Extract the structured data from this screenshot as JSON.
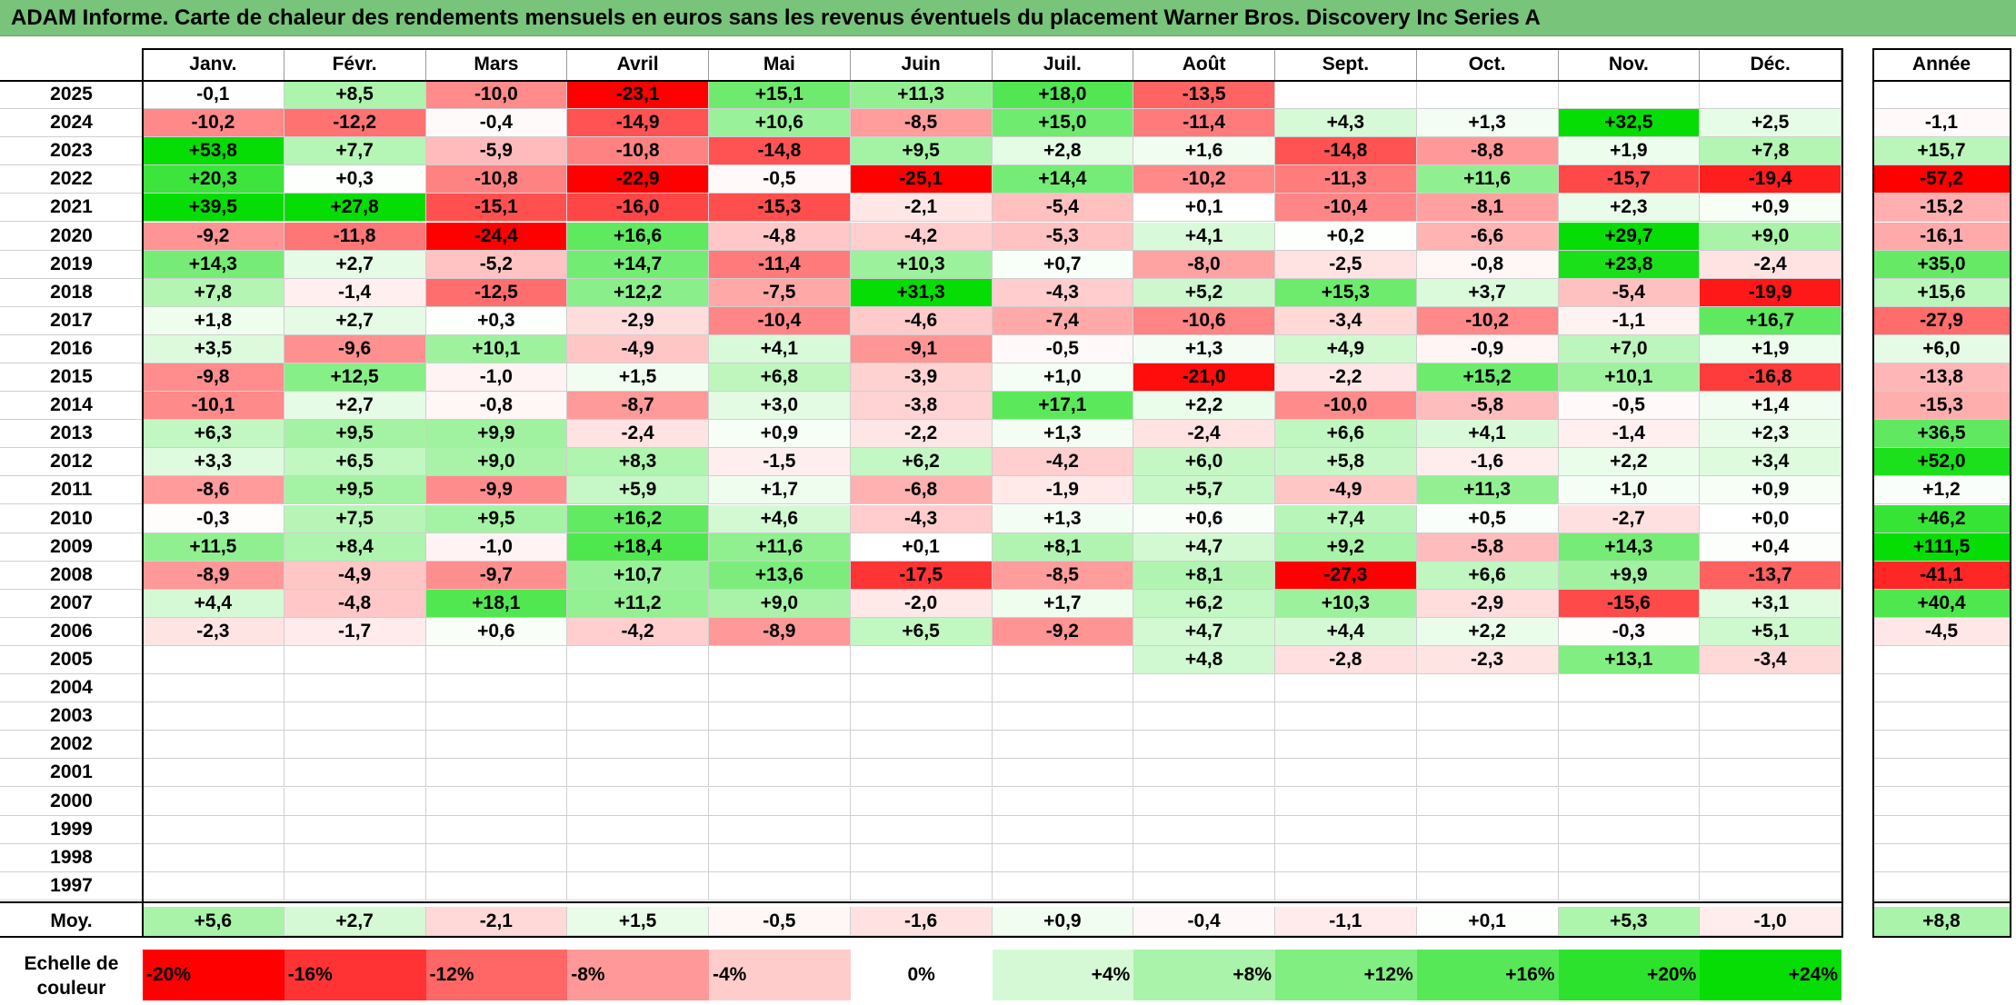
{
  "title": "ADAM Informe. Carte de chaleur des rendements mensuels en euros sans les revenus éventuels du placement Warner Bros. Discovery Inc Series A",
  "chart_data": {
    "type": "heatmap",
    "title": "ADAM Informe. Carte de chaleur des rendements mensuels en euros sans les revenus éventuels du placement Warner Bros. Discovery Inc Series A",
    "columns": [
      "Janv.",
      "Févr.",
      "Mars",
      "Avril",
      "Mai",
      "Juin",
      "Juil.",
      "Août",
      "Sept.",
      "Oct.",
      "Nov.",
      "Déc."
    ],
    "year_header": "Année",
    "rows": [
      {
        "year": "2025",
        "months": [
          "-0,1",
          "+8,5",
          "-10,0",
          "-23,1",
          "+15,1",
          "+11,3",
          "+18,0",
          "-13,5",
          "",
          "",
          "",
          ""
        ],
        "annual": ""
      },
      {
        "year": "2024",
        "months": [
          "-10,2",
          "-12,2",
          "-0,4",
          "-14,9",
          "+10,6",
          "-8,5",
          "+15,0",
          "-11,4",
          "+4,3",
          "+1,3",
          "+32,5",
          "+2,5"
        ],
        "annual": "-1,1"
      },
      {
        "year": "2023",
        "months": [
          "+53,8",
          "+7,7",
          "-5,9",
          "-10,8",
          "-14,8",
          "+9,5",
          "+2,8",
          "+1,6",
          "-14,8",
          "-8,8",
          "+1,9",
          "+7,8"
        ],
        "annual": "+15,7"
      },
      {
        "year": "2022",
        "months": [
          "+20,3",
          "+0,3",
          "-10,8",
          "-22,9",
          "-0,5",
          "-25,1",
          "+14,4",
          "-10,2",
          "-11,3",
          "+11,6",
          "-15,7",
          "-19,4"
        ],
        "annual": "-57,2"
      },
      {
        "year": "2021",
        "months": [
          "+39,5",
          "+27,8",
          "-15,1",
          "-16,0",
          "-15,3",
          "-2,1",
          "-5,4",
          "+0,1",
          "-10,4",
          "-8,1",
          "+2,3",
          "+0,9"
        ],
        "annual": "-15,2"
      },
      {
        "year": "2020",
        "months": [
          "-9,2",
          "-11,8",
          "-24,4",
          "+16,6",
          "-4,8",
          "-4,2",
          "-5,3",
          "+4,1",
          "+0,2",
          "-6,6",
          "+29,7",
          "+9,0"
        ],
        "annual": "-16,1"
      },
      {
        "year": "2019",
        "months": [
          "+14,3",
          "+2,7",
          "-5,2",
          "+14,7",
          "-11,4",
          "+10,3",
          "+0,7",
          "-8,0",
          "-2,5",
          "-0,8",
          "+23,8",
          "-2,4"
        ],
        "annual": "+35,0"
      },
      {
        "year": "2018",
        "months": [
          "+7,8",
          "-1,4",
          "-12,5",
          "+12,2",
          "-7,5",
          "+31,3",
          "-4,3",
          "+5,2",
          "+15,3",
          "+3,7",
          "-5,4",
          "-19,9"
        ],
        "annual": "+15,6"
      },
      {
        "year": "2017",
        "months": [
          "+1,8",
          "+2,7",
          "+0,3",
          "-2,9",
          "-10,4",
          "-4,6",
          "-7,4",
          "-10,6",
          "-3,4",
          "-10,2",
          "-1,1",
          "+16,7"
        ],
        "annual": "-27,9"
      },
      {
        "year": "2016",
        "months": [
          "+3,5",
          "-9,6",
          "+10,1",
          "-4,9",
          "+4,1",
          "-9,1",
          "-0,5",
          "+1,3",
          "+4,9",
          "-0,9",
          "+7,0",
          "+1,9"
        ],
        "annual": "+6,0"
      },
      {
        "year": "2015",
        "months": [
          "-9,8",
          "+12,5",
          "-1,0",
          "+1,5",
          "+6,8",
          "-3,9",
          "+1,0",
          "-21,0",
          "-2,2",
          "+15,2",
          "+10,1",
          "-16,8"
        ],
        "annual": "-13,8"
      },
      {
        "year": "2014",
        "months": [
          "-10,1",
          "+2,7",
          "-0,8",
          "-8,7",
          "+3,0",
          "-3,8",
          "+17,1",
          "+2,2",
          "-10,0",
          "-5,8",
          "-0,5",
          "+1,4"
        ],
        "annual": "-15,3"
      },
      {
        "year": "2013",
        "months": [
          "+6,3",
          "+9,5",
          "+9,9",
          "-2,4",
          "+0,9",
          "-2,2",
          "+1,3",
          "-2,4",
          "+6,6",
          "+4,1",
          "-1,4",
          "+2,3"
        ],
        "annual": "+36,5"
      },
      {
        "year": "2012",
        "months": [
          "+3,3",
          "+6,5",
          "+9,0",
          "+8,3",
          "-1,5",
          "+6,2",
          "-4,2",
          "+6,0",
          "+5,8",
          "-1,6",
          "+2,2",
          "+3,4"
        ],
        "annual": "+52,0"
      },
      {
        "year": "2011",
        "months": [
          "-8,6",
          "+9,5",
          "-9,9",
          "+5,9",
          "+1,7",
          "-6,8",
          "-1,9",
          "+5,7",
          "-4,9",
          "+11,3",
          "+1,0",
          "+0,9"
        ],
        "annual": "+1,2"
      },
      {
        "year": "2010",
        "months": [
          "-0,3",
          "+7,5",
          "+9,5",
          "+16,2",
          "+4,6",
          "-4,3",
          "+1,3",
          "+0,6",
          "+7,4",
          "+0,5",
          "-2,7",
          "+0,0"
        ],
        "annual": "+46,2"
      },
      {
        "year": "2009",
        "months": [
          "+11,5",
          "+8,4",
          "-1,0",
          "+18,4",
          "+11,6",
          "+0,1",
          "+8,1",
          "+4,7",
          "+9,2",
          "-5,8",
          "+14,3",
          "+0,4"
        ],
        "annual": "+111,5"
      },
      {
        "year": "2008",
        "months": [
          "-8,9",
          "-4,9",
          "-9,7",
          "+10,7",
          "+13,6",
          "-17,5",
          "-8,5",
          "+8,1",
          "-27,3",
          "+6,6",
          "+9,9",
          "-13,7"
        ],
        "annual": "-41,1"
      },
      {
        "year": "2007",
        "months": [
          "+4,4",
          "-4,8",
          "+18,1",
          "+11,2",
          "+9,0",
          "-2,0",
          "+1,7",
          "+6,2",
          "+10,3",
          "-2,9",
          "-15,6",
          "+3,1"
        ],
        "annual": "+40,4"
      },
      {
        "year": "2006",
        "months": [
          "-2,3",
          "-1,7",
          "+0,6",
          "-4,2",
          "-8,9",
          "+6,5",
          "-9,2",
          "+4,7",
          "+4,4",
          "+2,2",
          "-0,3",
          "+5,1"
        ],
        "annual": "-4,5"
      },
      {
        "year": "2005",
        "months": [
          "",
          "",
          "",
          "",
          "",
          "",
          "",
          "+4,8",
          "-2,8",
          "-2,3",
          "+13,1",
          "-3,4"
        ],
        "annual": ""
      },
      {
        "year": "2004",
        "months": [
          "",
          "",
          "",
          "",
          "",
          "",
          "",
          "",
          "",
          "",
          "",
          ""
        ],
        "annual": ""
      },
      {
        "year": "2003",
        "months": [
          "",
          "",
          "",
          "",
          "",
          "",
          "",
          "",
          "",
          "",
          "",
          ""
        ],
        "annual": ""
      },
      {
        "year": "2002",
        "months": [
          "",
          "",
          "",
          "",
          "",
          "",
          "",
          "",
          "",
          "",
          "",
          ""
        ],
        "annual": ""
      },
      {
        "year": "2001",
        "months": [
          "",
          "",
          "",
          "",
          "",
          "",
          "",
          "",
          "",
          "",
          "",
          ""
        ],
        "annual": ""
      },
      {
        "year": "2000",
        "months": [
          "",
          "",
          "",
          "",
          "",
          "",
          "",
          "",
          "",
          "",
          "",
          ""
        ],
        "annual": ""
      },
      {
        "year": "1999",
        "months": [
          "",
          "",
          "",
          "",
          "",
          "",
          "",
          "",
          "",
          "",
          "",
          ""
        ],
        "annual": ""
      },
      {
        "year": "1998",
        "months": [
          "",
          "",
          "",
          "",
          "",
          "",
          "",
          "",
          "",
          "",
          "",
          ""
        ],
        "annual": ""
      },
      {
        "year": "1997",
        "months": [
          "",
          "",
          "",
          "",
          "",
          "",
          "",
          "",
          "",
          "",
          "",
          ""
        ],
        "annual": ""
      }
    ],
    "average": {
      "label": "Moy.",
      "months": [
        "+5,6",
        "+2,7",
        "-2,1",
        "+1,5",
        "-0,5",
        "-1,6",
        "+0,9",
        "-0,4",
        "-1,1",
        "+0,1",
        "+5,3",
        "-1,0"
      ],
      "annual": "+8,8"
    },
    "scale": {
      "label": "Echelle de couleur",
      "items": [
        {
          "label": "-20%",
          "value": -20
        },
        {
          "label": "-16%",
          "value": -16
        },
        {
          "label": "-12%",
          "value": -12
        },
        {
          "label": "-8%",
          "value": -8
        },
        {
          "label": "-4%",
          "value": -4
        },
        {
          "label": "0%",
          "value": 0
        },
        {
          "label": "+4%",
          "value": 4
        },
        {
          "label": "+8%",
          "value": 8
        },
        {
          "label": "+12%",
          "value": 12
        },
        {
          "label": "+16%",
          "value": 16
        },
        {
          "label": "+20%",
          "value": 20
        },
        {
          "label": "+24%",
          "value": 24
        }
      ]
    },
    "colors": {
      "negative": "#ff0000",
      "neutral": "#ffffff",
      "positive": "#00dd00",
      "title_bar": "#77c47a"
    }
  }
}
